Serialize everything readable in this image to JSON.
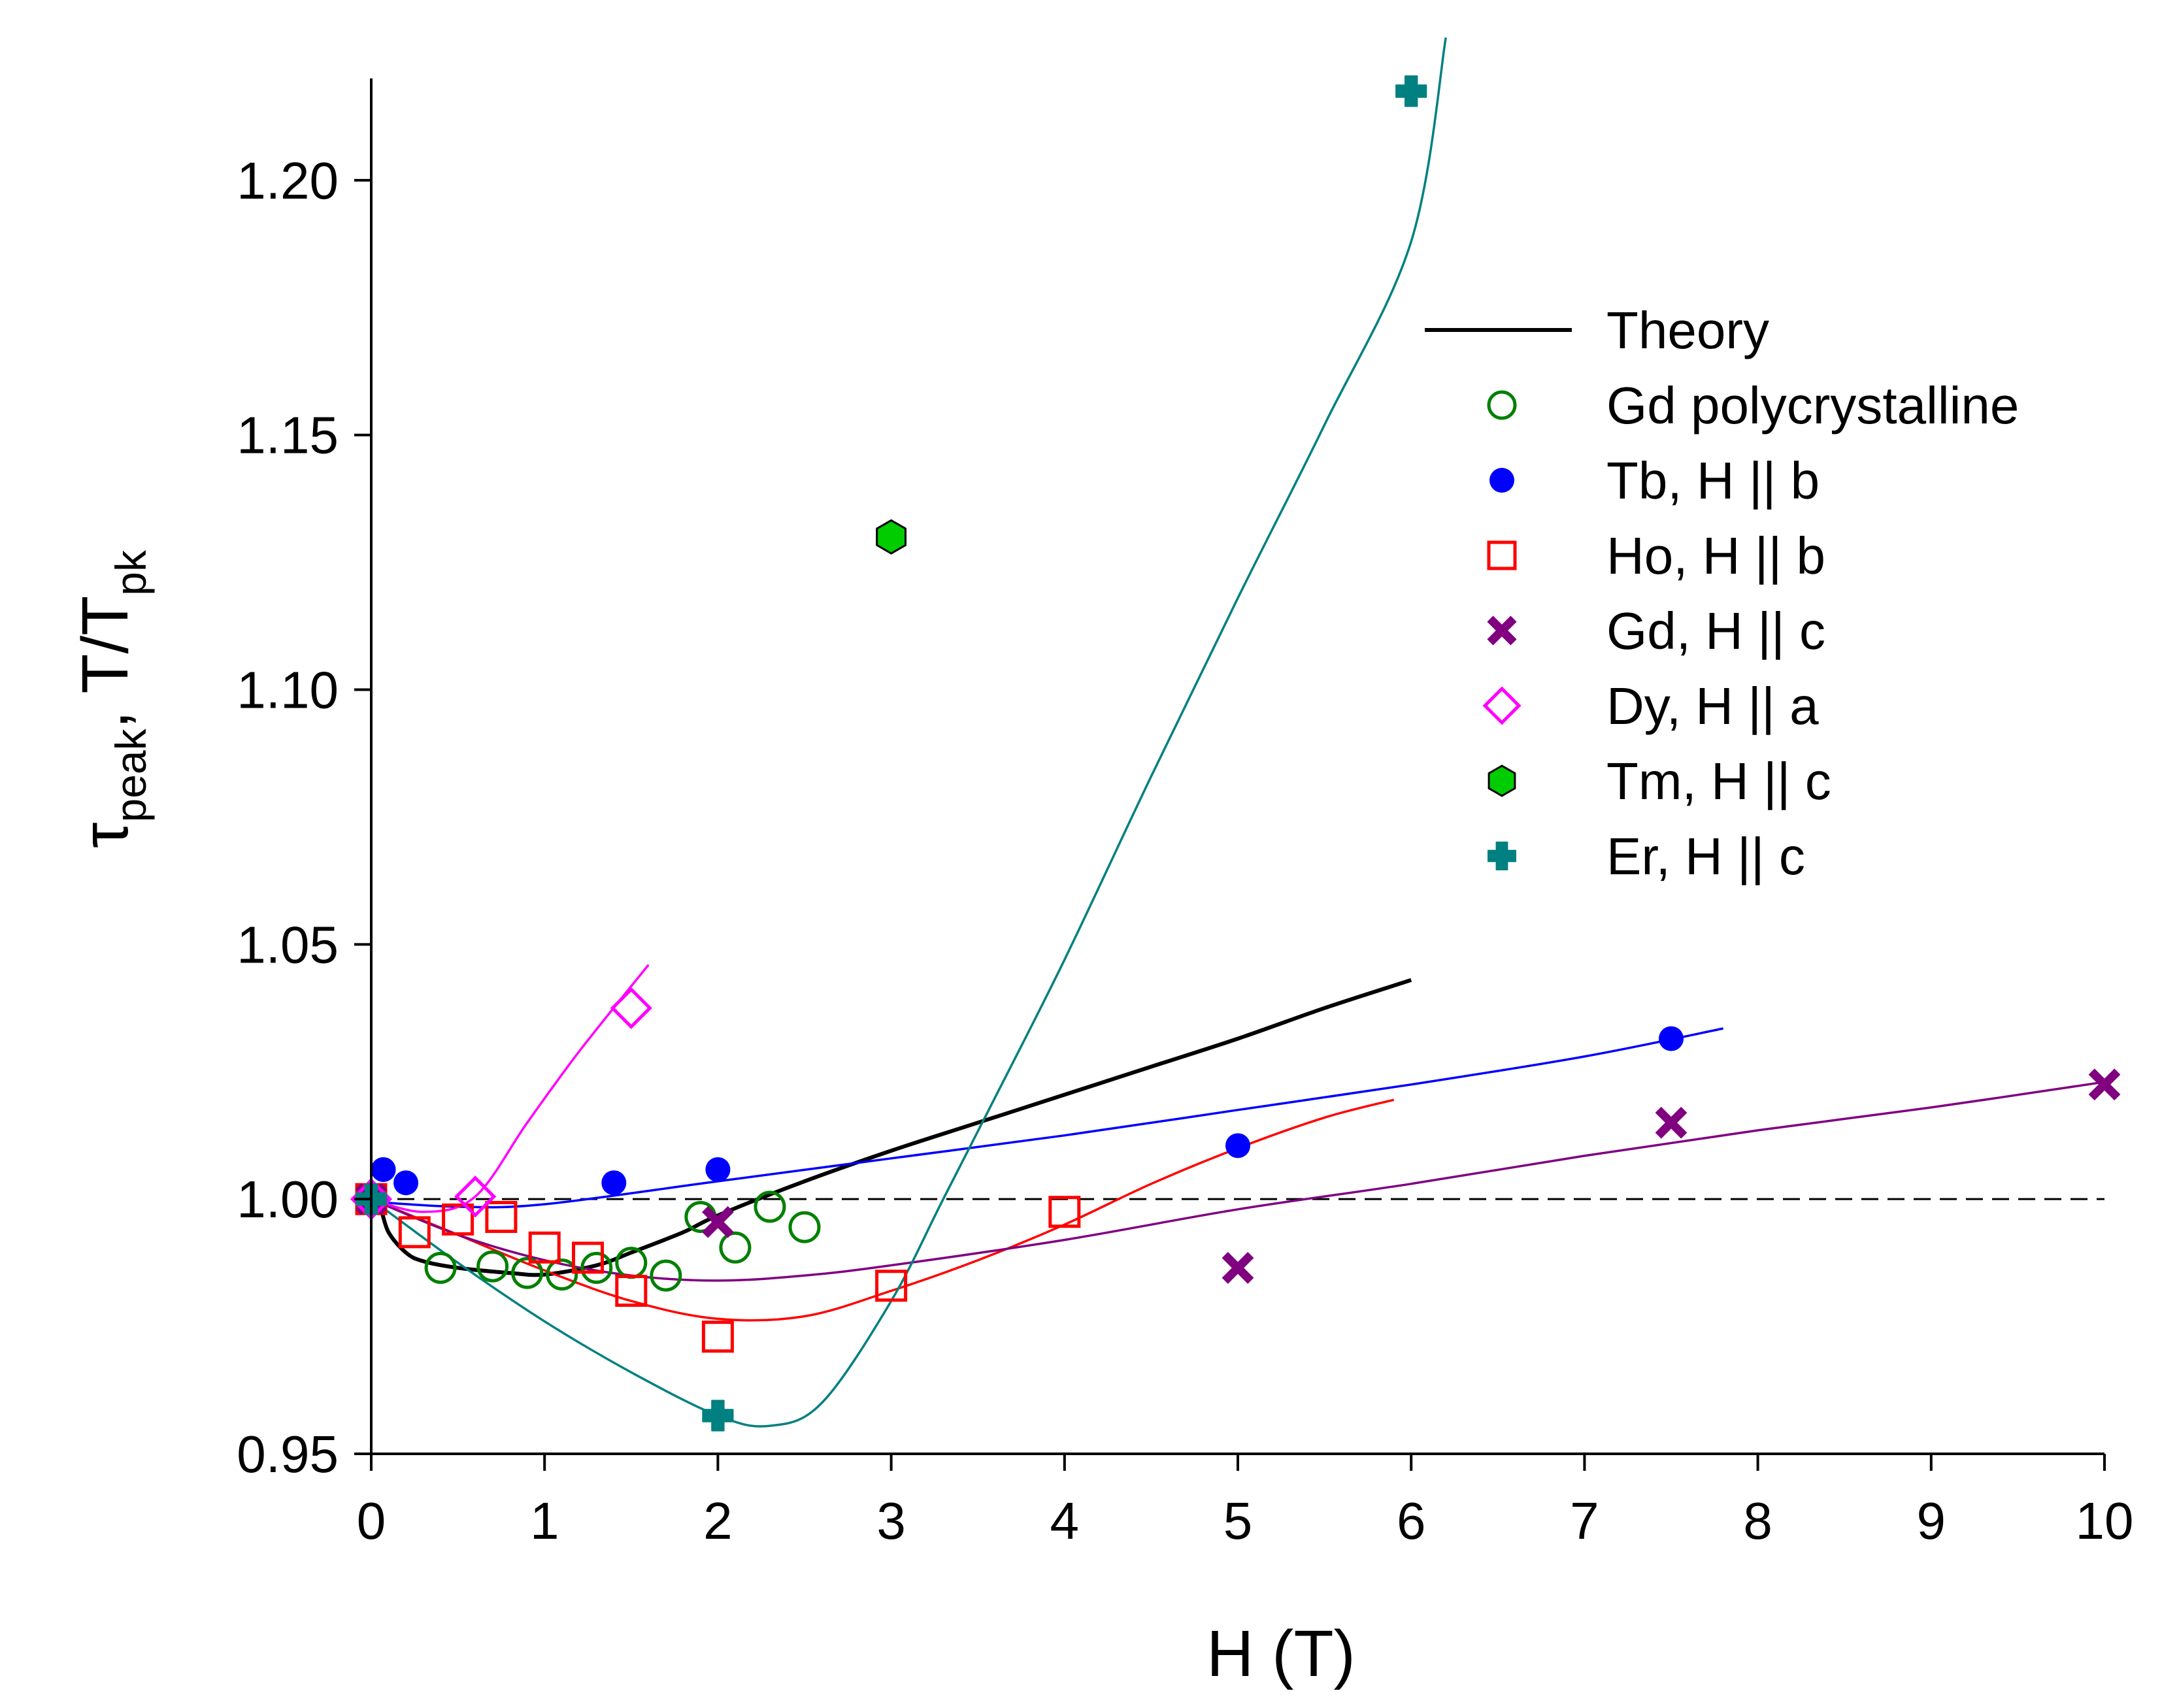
{
  "chart_data": {
    "type": "scatter",
    "title": "",
    "xlabel": "H (T)",
    "ylabel_main": "τ",
    "ylabel_sub": "peak",
    "ylabel_sep": ", T/T",
    "ylabel_sub2": "pk",
    "xlim": [
      0,
      10
    ],
    "ylim": [
      0.95,
      1.22
    ],
    "x_ticks": [
      "0",
      "1",
      "2",
      "3",
      "4",
      "5",
      "6",
      "7",
      "8",
      "9",
      "10"
    ],
    "y_ticks": [
      "0.95",
      "1.00",
      "1.05",
      "1.10",
      "1.15",
      "1.20"
    ],
    "grid": false,
    "reference_line": {
      "y": 1.0,
      "style": "dashed"
    },
    "legend_position": "top-right",
    "series": [
      {
        "name": "Theory",
        "marker": "line",
        "color": "#000000",
        "x": [],
        "y": [],
        "fit": {
          "x": [
            0,
            0.05,
            0.1,
            0.2,
            0.3,
            0.5,
            0.8,
            1.0,
            1.3,
            1.5,
            1.8,
            2.0,
            2.5,
            3.0,
            3.5,
            4.0,
            4.5,
            5.0,
            5.5,
            6.0
          ],
          "y": [
            1.0,
            0.9985,
            0.9935,
            0.9895,
            0.9878,
            0.9865,
            0.9855,
            0.9852,
            0.987,
            0.9895,
            0.9935,
            0.9968,
            1.0035,
            1.0095,
            1.015,
            1.0205,
            1.026,
            1.0315,
            1.0375,
            1.043
          ]
        }
      },
      {
        "name": "Gd polycrystalline",
        "marker": "open-circle",
        "color": "#008000",
        "x": [
          0,
          0.4,
          0.7,
          0.9,
          1.1,
          1.3,
          1.5,
          1.7,
          1.9,
          2.1,
          2.3,
          2.5
        ],
        "y": [
          1.0,
          0.9865,
          0.9868,
          0.9855,
          0.9852,
          0.9865,
          0.9875,
          0.985,
          0.9965,
          0.9905,
          0.9985,
          0.9945
        ]
      },
      {
        "name": "Tb, H || b",
        "marker": "filled-circle",
        "color": "#0000ff",
        "x": [
          0,
          0.07,
          0.2,
          1.4,
          2.0,
          5.0,
          7.5
        ],
        "y": [
          1.0,
          1.0058,
          1.0032,
          1.0032,
          1.0058,
          1.0105,
          1.0315
        ],
        "fit": {
          "x": [
            0,
            0.5,
            1.0,
            2.0,
            3.0,
            4.0,
            5.0,
            6.0,
            7.0,
            7.8
          ],
          "y": [
            0.9995,
            0.9985,
            0.999,
            1.0035,
            1.008,
            1.0125,
            1.0175,
            1.0225,
            1.028,
            1.0335
          ]
        }
      },
      {
        "name": "Ho, H || b",
        "marker": "open-square",
        "color": "#ff0000",
        "x": [
          0,
          0.25,
          0.5,
          0.75,
          1.0,
          1.25,
          1.5,
          2.0,
          3.0,
          4.0
        ],
        "y": [
          1.0,
          0.9935,
          0.996,
          0.9965,
          0.9905,
          0.9885,
          0.982,
          0.973,
          0.983,
          0.9975
        ],
        "fit": {
          "x": [
            0,
            0.5,
            1.0,
            1.5,
            2.0,
            2.5,
            3.0,
            3.5,
            4.0,
            4.5,
            5.0,
            5.5,
            5.9
          ],
          "y": [
            1.0,
            0.993,
            0.986,
            0.98,
            0.9765,
            0.977,
            0.982,
            0.988,
            0.995,
            1.003,
            1.01,
            1.016,
            1.0195
          ]
        }
      },
      {
        "name": "Gd, H || c",
        "marker": "x",
        "color": "#800080",
        "x": [
          0,
          2.0,
          5.0,
          7.5,
          10.0
        ],
        "y": [
          1.0,
          0.9955,
          0.9865,
          1.015,
          1.0225
        ],
        "fit": {
          "x": [
            0,
            0.5,
            1.0,
            1.5,
            2.0,
            2.5,
            3.0,
            4.0,
            5.0,
            6.0,
            7.0,
            8.0,
            9.0,
            10.0
          ],
          "y": [
            1.0,
            0.993,
            0.988,
            0.985,
            0.984,
            0.985,
            0.987,
            0.992,
            0.998,
            1.003,
            1.0085,
            1.0135,
            1.018,
            1.023
          ]
        }
      },
      {
        "name": "Dy, H || a",
        "marker": "open-diamond",
        "color": "#ff00ff",
        "x": [
          0,
          0.6,
          1.5
        ],
        "y": [
          1.0,
          1.0005,
          1.0375
        ],
        "fit": {
          "x": [
            0,
            0.3,
            0.6,
            0.9,
            1.2,
            1.6
          ],
          "y": [
            1.0,
            0.9975,
            1.0005,
            1.015,
            1.029,
            1.046
          ]
        }
      },
      {
        "name": "Tm, H || c",
        "marker": "filled-hexagon",
        "color": "#00cc00",
        "x": [
          3.0
        ],
        "y": [
          1.13
        ]
      },
      {
        "name": "Er, H || c",
        "marker": "filled-cross",
        "color": "#008080",
        "x": [
          0,
          2.0,
          6.0
        ],
        "y": [
          1.0,
          0.9575,
          1.2175
        ],
        "fit": {
          "x": [
            0,
            0.5,
            1.0,
            1.5,
            2.0,
            2.3,
            2.6,
            3.0,
            3.3,
            3.6,
            4.0,
            4.5,
            5.0,
            5.5,
            6.0,
            6.2
          ],
          "y": [
            1.0,
            0.9875,
            0.976,
            0.966,
            0.9575,
            0.9555,
            0.96,
            0.98,
            1.0,
            1.02,
            1.047,
            1.083,
            1.118,
            1.152,
            1.188,
            1.228
          ]
        }
      }
    ]
  }
}
